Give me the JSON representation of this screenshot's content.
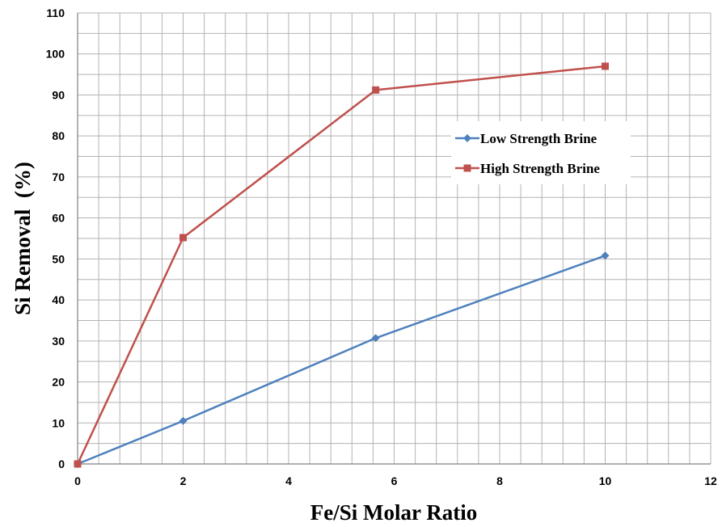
{
  "chart_data": {
    "type": "scatter",
    "title": "",
    "xlabel": "Fe/Si Molar Ratio",
    "ylabel": "Si Removal  (%)",
    "xlim": [
      0,
      12
    ],
    "ylim": [
      0,
      110
    ],
    "x_major_ticks": [
      0,
      2,
      4,
      6,
      8,
      10,
      12
    ],
    "y_major_ticks": [
      0,
      10,
      20,
      30,
      40,
      50,
      60,
      70,
      80,
      90,
      100,
      110
    ],
    "grid": true,
    "legend_position": "center-right",
    "series": [
      {
        "name": "Low Strength Brine",
        "color": "#4F81BD",
        "marker": "diamond",
        "x": [
          0,
          2,
          5.65,
          10
        ],
        "y": [
          0,
          10.5,
          30.7,
          50.8
        ]
      },
      {
        "name": "High Strength Brine",
        "color": "#C0504D",
        "marker": "square",
        "x": [
          0,
          2,
          5.65,
          10
        ],
        "y": [
          0,
          55.2,
          91.2,
          97
        ]
      }
    ]
  }
}
